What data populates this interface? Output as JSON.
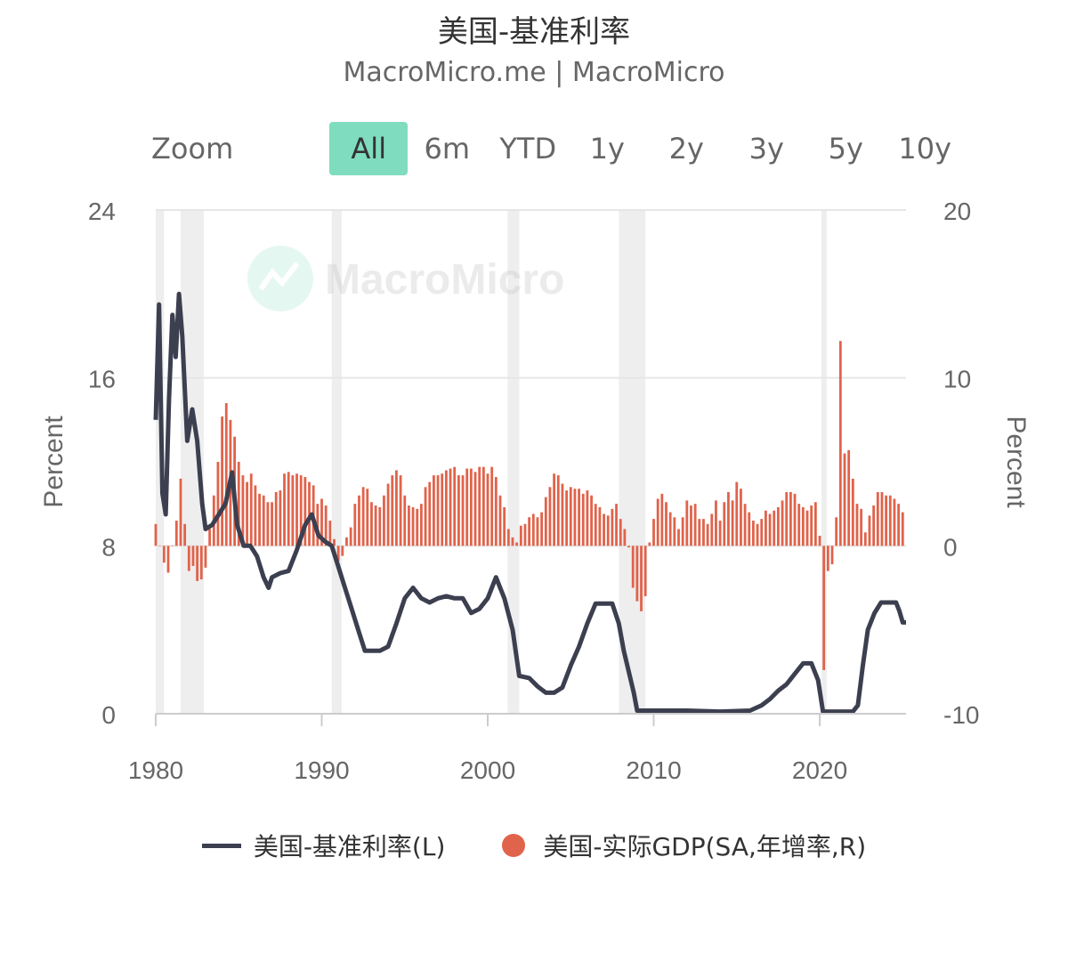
{
  "title": "美国-基准利率",
  "subtitle": "MacroMicro.me | MacroMicro",
  "watermark": "MacroMicro",
  "zoom": {
    "label": "Zoom",
    "buttons": [
      "All",
      "6m",
      "YTD",
      "1y",
      "2y",
      "3y",
      "5y",
      "10y"
    ],
    "active": "All"
  },
  "colors": {
    "rate": "#3c3f4f",
    "gdp": "#e0634b",
    "zoom_active": "#7fdcbf",
    "recession": "#eeeeee"
  },
  "chart_data": {
    "type": "line",
    "xlim": [
      1980,
      2025.2
    ],
    "x_ticks": [
      "1980",
      "1990",
      "2000",
      "2010",
      "2020"
    ],
    "y_left": {
      "label": "Percent",
      "lim": [
        0,
        24
      ],
      "ticks": [
        "0",
        "8",
        "16",
        "24"
      ]
    },
    "y_right": {
      "label": "Percent",
      "lim": [
        -10,
        20
      ],
      "ticks": [
        "-10",
        "0",
        "10",
        "20"
      ]
    },
    "recessions": [
      [
        1980.0,
        1980.5
      ],
      [
        1981.5,
        1982.9
      ],
      [
        1990.6,
        1991.2
      ],
      [
        2001.2,
        2001.9
      ],
      [
        2007.9,
        2009.5
      ],
      [
        2020.1,
        2020.4
      ]
    ],
    "series": [
      {
        "name": "美国-基准利率(L)",
        "type": "line",
        "axis": "left",
        "points": [
          [
            1980.0,
            14.0
          ],
          [
            1980.2,
            19.5
          ],
          [
            1980.4,
            10.5
          ],
          [
            1980.6,
            9.5
          ],
          [
            1980.8,
            15.0
          ],
          [
            1981.0,
            19.0
          ],
          [
            1981.2,
            17.0
          ],
          [
            1981.4,
            20.0
          ],
          [
            1981.6,
            18.0
          ],
          [
            1981.9,
            13.0
          ],
          [
            1982.2,
            14.5
          ],
          [
            1982.5,
            13.0
          ],
          [
            1982.8,
            10.0
          ],
          [
            1983.0,
            8.8
          ],
          [
            1983.4,
            9.0
          ],
          [
            1983.8,
            9.5
          ],
          [
            1984.2,
            10.0
          ],
          [
            1984.6,
            11.5
          ],
          [
            1984.9,
            9.0
          ],
          [
            1985.3,
            8.0
          ],
          [
            1985.7,
            8.0
          ],
          [
            1986.1,
            7.5
          ],
          [
            1986.5,
            6.5
          ],
          [
            1986.8,
            6.0
          ],
          [
            1987.0,
            6.5
          ],
          [
            1987.5,
            6.7
          ],
          [
            1988.0,
            6.8
          ],
          [
            1988.5,
            7.8
          ],
          [
            1989.0,
            9.0
          ],
          [
            1989.4,
            9.5
          ],
          [
            1989.8,
            8.5
          ],
          [
            1990.2,
            8.2
          ],
          [
            1990.6,
            8.0
          ],
          [
            1991.0,
            7.0
          ],
          [
            1991.4,
            6.0
          ],
          [
            1991.8,
            5.0
          ],
          [
            1992.2,
            4.0
          ],
          [
            1992.6,
            3.0
          ],
          [
            1993.0,
            3.0
          ],
          [
            1993.5,
            3.0
          ],
          [
            1994.0,
            3.2
          ],
          [
            1994.5,
            4.3
          ],
          [
            1995.0,
            5.5
          ],
          [
            1995.5,
            6.0
          ],
          [
            1996.0,
            5.5
          ],
          [
            1996.5,
            5.3
          ],
          [
            1997.0,
            5.5
          ],
          [
            1997.5,
            5.6
          ],
          [
            1998.0,
            5.5
          ],
          [
            1998.5,
            5.5
          ],
          [
            1999.0,
            4.8
          ],
          [
            1999.5,
            5.0
          ],
          [
            2000.0,
            5.5
          ],
          [
            2000.5,
            6.5
          ],
          [
            2001.0,
            5.5
          ],
          [
            2001.5,
            4.0
          ],
          [
            2001.9,
            1.8
          ],
          [
            2002.5,
            1.7
          ],
          [
            2003.0,
            1.3
          ],
          [
            2003.5,
            1.0
          ],
          [
            2004.0,
            1.0
          ],
          [
            2004.5,
            1.25
          ],
          [
            2005.0,
            2.3
          ],
          [
            2005.5,
            3.2
          ],
          [
            2006.0,
            4.3
          ],
          [
            2006.5,
            5.25
          ],
          [
            2007.0,
            5.25
          ],
          [
            2007.5,
            5.25
          ],
          [
            2007.9,
            4.3
          ],
          [
            2008.2,
            3.0
          ],
          [
            2008.5,
            2.0
          ],
          [
            2008.8,
            1.0
          ],
          [
            2009.0,
            0.15
          ],
          [
            2010.0,
            0.15
          ],
          [
            2012.0,
            0.15
          ],
          [
            2014.0,
            0.1
          ],
          [
            2015.8,
            0.15
          ],
          [
            2016.5,
            0.4
          ],
          [
            2017.0,
            0.7
          ],
          [
            2017.5,
            1.1
          ],
          [
            2018.0,
            1.4
          ],
          [
            2018.5,
            1.9
          ],
          [
            2019.0,
            2.4
          ],
          [
            2019.5,
            2.4
          ],
          [
            2019.9,
            1.6
          ],
          [
            2020.2,
            0.1
          ],
          [
            2021.0,
            0.1
          ],
          [
            2022.0,
            0.1
          ],
          [
            2022.3,
            0.4
          ],
          [
            2022.6,
            2.3
          ],
          [
            2022.9,
            4.0
          ],
          [
            2023.3,
            4.8
          ],
          [
            2023.7,
            5.3
          ],
          [
            2024.0,
            5.3
          ],
          [
            2024.6,
            5.3
          ],
          [
            2024.8,
            4.9
          ],
          [
            2025.0,
            4.35
          ],
          [
            2025.2,
            4.35
          ]
        ]
      },
      {
        "name": "美国-实际GDP(SA,年增率,R)",
        "type": "bar",
        "axis": "right",
        "points": [
          [
            1980.0,
            1.3
          ],
          [
            1980.25,
            0.0
          ],
          [
            1980.5,
            -1.0
          ],
          [
            1980.75,
            -1.6
          ],
          [
            1981.0,
            0.0
          ],
          [
            1981.25,
            1.5
          ],
          [
            1981.5,
            4.0
          ],
          [
            1981.75,
            1.3
          ],
          [
            1982.0,
            -1.5
          ],
          [
            1982.25,
            -1.2
          ],
          [
            1982.5,
            -2.1
          ],
          [
            1982.75,
            -2.0
          ],
          [
            1983.0,
            -1.3
          ],
          [
            1983.25,
            1.0
          ],
          [
            1983.5,
            3.0
          ],
          [
            1983.75,
            5.0
          ],
          [
            1984.0,
            7.7
          ],
          [
            1984.25,
            8.5
          ],
          [
            1984.5,
            7.5
          ],
          [
            1984.75,
            6.5
          ],
          [
            1985.0,
            5.0
          ],
          [
            1985.25,
            4.2
          ],
          [
            1985.5,
            3.8
          ],
          [
            1985.75,
            4.3
          ],
          [
            1986.0,
            3.6
          ],
          [
            1986.25,
            3.1
          ],
          [
            1986.5,
            3.0
          ],
          [
            1986.75,
            2.6
          ],
          [
            1987.0,
            2.6
          ],
          [
            1987.25,
            3.2
          ],
          [
            1987.5,
            3.3
          ],
          [
            1987.75,
            4.3
          ],
          [
            1988.0,
            4.4
          ],
          [
            1988.25,
            4.2
          ],
          [
            1988.5,
            4.3
          ],
          [
            1988.75,
            4.2
          ],
          [
            1989.0,
            4.1
          ],
          [
            1989.25,
            3.8
          ],
          [
            1989.5,
            3.6
          ],
          [
            1989.75,
            2.5
          ],
          [
            1990.0,
            2.8
          ],
          [
            1990.25,
            2.4
          ],
          [
            1990.5,
            1.5
          ],
          [
            1990.75,
            0.4
          ],
          [
            1991.0,
            -0.9
          ],
          [
            1991.25,
            -0.6
          ],
          [
            1991.5,
            0.5
          ],
          [
            1991.75,
            1.1
          ],
          [
            1992.0,
            2.5
          ],
          [
            1992.25,
            3.0
          ],
          [
            1992.5,
            3.5
          ],
          [
            1992.75,
            3.4
          ],
          [
            1993.0,
            2.6
          ],
          [
            1993.25,
            2.4
          ],
          [
            1993.5,
            2.3
          ],
          [
            1993.75,
            3.0
          ],
          [
            1994.0,
            3.7
          ],
          [
            1994.25,
            4.2
          ],
          [
            1994.5,
            4.5
          ],
          [
            1994.75,
            4.2
          ],
          [
            1995.0,
            3.0
          ],
          [
            1995.25,
            2.4
          ],
          [
            1995.5,
            2.3
          ],
          [
            1995.75,
            2.2
          ],
          [
            1996.0,
            2.5
          ],
          [
            1996.25,
            3.5
          ],
          [
            1996.5,
            3.8
          ],
          [
            1996.75,
            4.2
          ],
          [
            1997.0,
            4.2
          ],
          [
            1997.25,
            4.3
          ],
          [
            1997.5,
            4.5
          ],
          [
            1997.75,
            4.6
          ],
          [
            1998.0,
            4.7
          ],
          [
            1998.25,
            4.2
          ],
          [
            1998.5,
            4.2
          ],
          [
            1998.75,
            4.6
          ],
          [
            1999.0,
            4.6
          ],
          [
            1999.25,
            4.4
          ],
          [
            1999.5,
            4.7
          ],
          [
            1999.75,
            4.7
          ],
          [
            2000.0,
            4.3
          ],
          [
            2000.25,
            4.7
          ],
          [
            2000.5,
            4.1
          ],
          [
            2000.75,
            3.0
          ],
          [
            2001.0,
            2.3
          ],
          [
            2001.25,
            1.0
          ],
          [
            2001.5,
            0.5
          ],
          [
            2001.75,
            0.2
          ],
          [
            2002.0,
            1.2
          ],
          [
            2002.25,
            1.3
          ],
          [
            2002.5,
            1.7
          ],
          [
            2002.75,
            1.9
          ],
          [
            2003.0,
            1.7
          ],
          [
            2003.25,
            2.0
          ],
          [
            2003.5,
            2.9
          ],
          [
            2003.75,
            3.5
          ],
          [
            2004.0,
            4.3
          ],
          [
            2004.25,
            4.2
          ],
          [
            2004.5,
            3.7
          ],
          [
            2004.75,
            3.3
          ],
          [
            2005.0,
            3.5
          ],
          [
            2005.25,
            3.4
          ],
          [
            2005.5,
            3.4
          ],
          [
            2005.75,
            3.1
          ],
          [
            2006.0,
            3.3
          ],
          [
            2006.25,
            3.0
          ],
          [
            2006.5,
            2.5
          ],
          [
            2006.75,
            2.3
          ],
          [
            2007.0,
            1.9
          ],
          [
            2007.25,
            1.8
          ],
          [
            2007.5,
            2.2
          ],
          [
            2007.75,
            2.5
          ],
          [
            2008.0,
            1.6
          ],
          [
            2008.25,
            1.0
          ],
          [
            2008.5,
            -0.1
          ],
          [
            2008.75,
            -2.5
          ],
          [
            2009.0,
            -3.3
          ],
          [
            2009.25,
            -3.9
          ],
          [
            2009.5,
            -3.0
          ],
          [
            2009.75,
            0.2
          ],
          [
            2010.0,
            1.6
          ],
          [
            2010.25,
            2.8
          ],
          [
            2010.5,
            3.1
          ],
          [
            2010.75,
            2.6
          ],
          [
            2011.0,
            2.0
          ],
          [
            2011.25,
            1.7
          ],
          [
            2011.5,
            1.0
          ],
          [
            2011.75,
            1.7
          ],
          [
            2012.0,
            2.7
          ],
          [
            2012.25,
            2.4
          ],
          [
            2012.5,
            2.5
          ],
          [
            2012.75,
            1.6
          ],
          [
            2013.0,
            1.6
          ],
          [
            2013.25,
            1.3
          ],
          [
            2013.5,
            1.9
          ],
          [
            2013.75,
            2.7
          ],
          [
            2014.0,
            1.5
          ],
          [
            2014.25,
            2.6
          ],
          [
            2014.5,
            3.2
          ],
          [
            2014.75,
            2.7
          ],
          [
            2015.0,
            3.8
          ],
          [
            2015.25,
            3.4
          ],
          [
            2015.5,
            2.5
          ],
          [
            2015.75,
            2.0
          ],
          [
            2016.0,
            1.5
          ],
          [
            2016.25,
            1.3
          ],
          [
            2016.5,
            1.6
          ],
          [
            2016.75,
            2.1
          ],
          [
            2017.0,
            1.9
          ],
          [
            2017.25,
            2.1
          ],
          [
            2017.5,
            2.3
          ],
          [
            2017.75,
            2.7
          ],
          [
            2018.0,
            3.2
          ],
          [
            2018.25,
            3.2
          ],
          [
            2018.5,
            3.1
          ],
          [
            2018.75,
            2.5
          ],
          [
            2019.0,
            2.3
          ],
          [
            2019.25,
            2.1
          ],
          [
            2019.5,
            2.4
          ],
          [
            2019.75,
            2.6
          ],
          [
            2020.0,
            0.6
          ],
          [
            2020.25,
            -7.4
          ],
          [
            2020.5,
            -1.5
          ],
          [
            2020.75,
            -1.1
          ],
          [
            2021.0,
            1.7
          ],
          [
            2021.25,
            12.2
          ],
          [
            2021.5,
            5.5
          ],
          [
            2021.75,
            5.7
          ],
          [
            2022.0,
            4.0
          ],
          [
            2022.25,
            2.5
          ],
          [
            2022.5,
            2.2
          ],
          [
            2022.75,
            0.8
          ],
          [
            2023.0,
            1.8
          ],
          [
            2023.25,
            2.4
          ],
          [
            2023.5,
            3.2
          ],
          [
            2023.75,
            3.2
          ],
          [
            2024.0,
            3.0
          ],
          [
            2024.25,
            3.0
          ],
          [
            2024.5,
            2.8
          ],
          [
            2024.75,
            2.5
          ],
          [
            2025.0,
            2.0
          ]
        ]
      }
    ],
    "legend_position": "bottom"
  }
}
